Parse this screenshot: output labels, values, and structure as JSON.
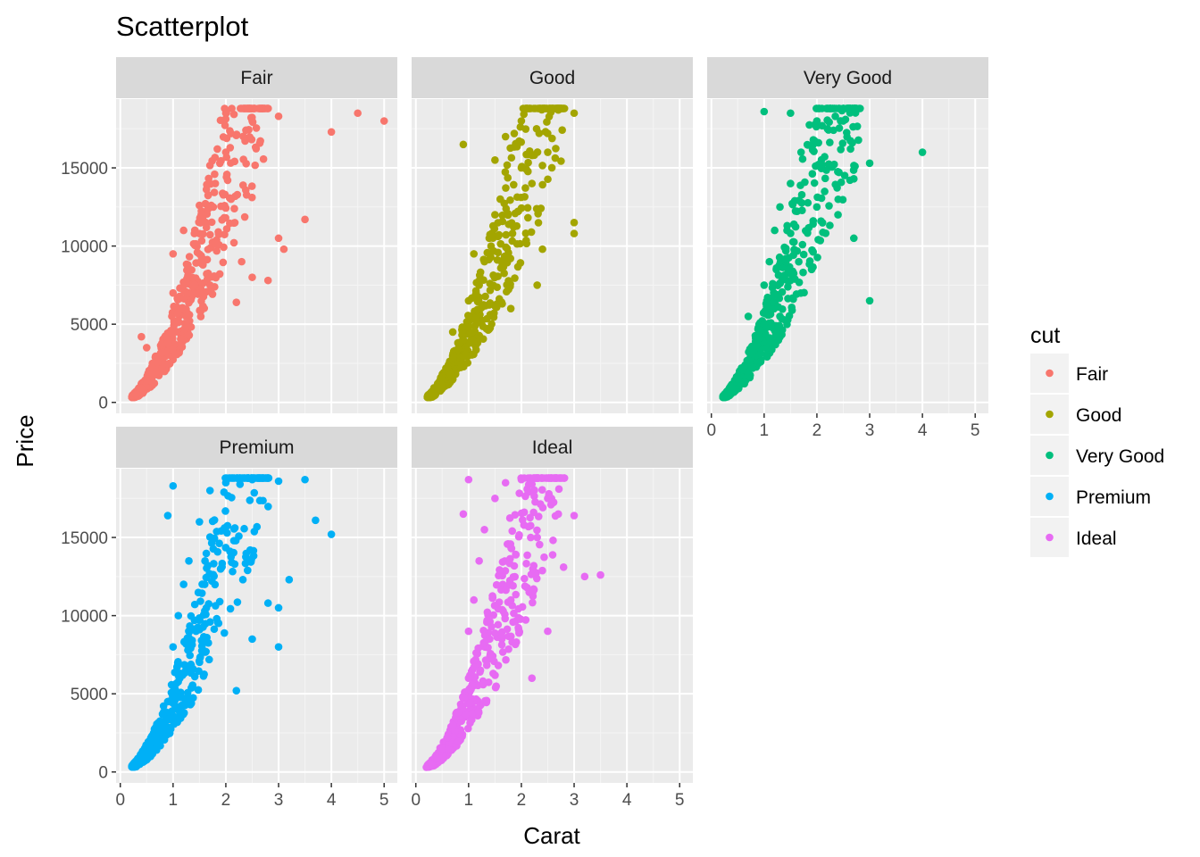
{
  "chart_data": {
    "type": "scatter",
    "title": "Scatterplot",
    "xlabel": "Carat",
    "ylabel": "Price",
    "xlim": [
      0,
      5.2
    ],
    "ylim": [
      0,
      19000
    ],
    "x_ticks": [
      0,
      1,
      2,
      3,
      4,
      5
    ],
    "y_ticks": [
      0,
      5000,
      10000,
      15000
    ],
    "legend": {
      "title": "cut",
      "position": "right",
      "entries": [
        "Fair",
        "Good",
        "Very Good",
        "Premium",
        "Ideal"
      ]
    },
    "facets": [
      {
        "name": "Fair",
        "color": "#F8766D",
        "points": [
          [
            0.3,
            500
          ],
          [
            0.4,
            900
          ],
          [
            0.5,
            1400
          ],
          [
            0.7,
            2600
          ],
          [
            0.8,
            3200
          ],
          [
            0.9,
            3800
          ],
          [
            1.0,
            4400
          ],
          [
            1.0,
            7000
          ],
          [
            1.1,
            5200
          ],
          [
            1.2,
            6000
          ],
          [
            1.5,
            7000
          ],
          [
            1.5,
            12600
          ],
          [
            2.0,
            16000
          ],
          [
            2.0,
            18500
          ],
          [
            2.5,
            18000
          ],
          [
            3.0,
            18300
          ],
          [
            3.0,
            10500
          ],
          [
            3.5,
            11700
          ],
          [
            4.0,
            17300
          ],
          [
            4.5,
            18500
          ],
          [
            5.0,
            18000
          ],
          [
            1.7,
            7500
          ],
          [
            2.2,
            6400
          ],
          [
            2.5,
            8000
          ],
          [
            0.4,
            4200
          ],
          [
            0.5,
            3500
          ],
          [
            1.0,
            9500
          ],
          [
            1.2,
            11000
          ],
          [
            1.8,
            14000
          ],
          [
            2.1,
            13000
          ],
          [
            2.3,
            9000
          ],
          [
            2.8,
            7800
          ],
          [
            3.1,
            9800
          ]
        ]
      },
      {
        "name": "Good",
        "color": "#A3A500",
        "points": [
          [
            0.25,
            400
          ],
          [
            0.3,
            600
          ],
          [
            0.4,
            1000
          ],
          [
            0.5,
            1600
          ],
          [
            0.6,
            2200
          ],
          [
            0.7,
            2800
          ],
          [
            0.8,
            3400
          ],
          [
            0.9,
            4000
          ],
          [
            1.0,
            4800
          ],
          [
            1.0,
            6500
          ],
          [
            1.2,
            7500
          ],
          [
            1.3,
            9000
          ],
          [
            1.5,
            12000
          ],
          [
            1.5,
            15500
          ],
          [
            1.7,
            17000
          ],
          [
            2.0,
            18000
          ],
          [
            2.0,
            15000
          ],
          [
            2.2,
            14000
          ],
          [
            2.5,
            16000
          ],
          [
            2.7,
            18700
          ],
          [
            3.0,
            18500
          ],
          [
            3.0,
            11500
          ],
          [
            3.0,
            10800
          ],
          [
            0.7,
            4500
          ],
          [
            1.1,
            9500
          ],
          [
            1.6,
            13000
          ],
          [
            1.8,
            6000
          ],
          [
            2.3,
            7500
          ],
          [
            2.4,
            9800
          ],
          [
            0.9,
            16500
          ]
        ]
      },
      {
        "name": "Very Good",
        "color": "#00BF7D",
        "points": [
          [
            0.23,
            400
          ],
          [
            0.3,
            600
          ],
          [
            0.4,
            900
          ],
          [
            0.5,
            1500
          ],
          [
            0.6,
            2100
          ],
          [
            0.7,
            2700
          ],
          [
            0.8,
            3300
          ],
          [
            0.9,
            4100
          ],
          [
            1.0,
            5000
          ],
          [
            1.0,
            7500
          ],
          [
            1.1,
            9000
          ],
          [
            1.2,
            11000
          ],
          [
            1.3,
            12500
          ],
          [
            1.5,
            14000
          ],
          [
            1.7,
            16000
          ],
          [
            2.0,
            18000
          ],
          [
            1.0,
            18600
          ],
          [
            1.5,
            18500
          ],
          [
            2.2,
            17500
          ],
          [
            2.5,
            18000
          ],
          [
            2.7,
            14300
          ],
          [
            3.0,
            15300
          ],
          [
            4.0,
            16000
          ],
          [
            3.0,
            6500
          ],
          [
            2.7,
            10500
          ],
          [
            1.9,
            8500
          ],
          [
            2.4,
            12000
          ],
          [
            0.7,
            5500
          ],
          [
            1.3,
            5500
          ],
          [
            2.1,
            15200
          ]
        ]
      },
      {
        "name": "Premium",
        "color": "#00B0F6",
        "points": [
          [
            0.23,
            400
          ],
          [
            0.3,
            600
          ],
          [
            0.4,
            1000
          ],
          [
            0.5,
            1700
          ],
          [
            0.6,
            2300
          ],
          [
            0.7,
            3000
          ],
          [
            0.8,
            3700
          ],
          [
            0.9,
            4500
          ],
          [
            1.0,
            5500
          ],
          [
            1.0,
            8000
          ],
          [
            1.1,
            10000
          ],
          [
            1.2,
            12000
          ],
          [
            1.3,
            13500
          ],
          [
            1.5,
            16000
          ],
          [
            1.7,
            18000
          ],
          [
            2.0,
            18500
          ],
          [
            2.5,
            18700
          ],
          [
            3.0,
            18600
          ],
          [
            3.5,
            18700
          ],
          [
            3.7,
            16100
          ],
          [
            4.0,
            15200
          ],
          [
            3.2,
            12300
          ],
          [
            3.0,
            10500
          ],
          [
            3.0,
            8000
          ],
          [
            2.5,
            8500
          ],
          [
            2.2,
            5200
          ],
          [
            1.0,
            18300
          ],
          [
            0.9,
            16400
          ],
          [
            1.6,
            12000
          ],
          [
            2.8,
            10800
          ]
        ]
      },
      {
        "name": "Ideal",
        "color": "#E76BF3",
        "points": [
          [
            0.2,
            300
          ],
          [
            0.3,
            500
          ],
          [
            0.4,
            900
          ],
          [
            0.5,
            1500
          ],
          [
            0.6,
            2200
          ],
          [
            0.7,
            3000
          ],
          [
            0.8,
            3800
          ],
          [
            0.9,
            4800
          ],
          [
            1.0,
            6000
          ],
          [
            1.0,
            9000
          ],
          [
            1.1,
            11000
          ],
          [
            1.2,
            13500
          ],
          [
            1.3,
            15500
          ],
          [
            1.5,
            17500
          ],
          [
            1.7,
            18500
          ],
          [
            2.0,
            18700
          ],
          [
            2.2,
            18400
          ],
          [
            2.5,
            17500
          ],
          [
            2.7,
            16500
          ],
          [
            3.0,
            16400
          ],
          [
            3.2,
            12500
          ],
          [
            3.5,
            12600
          ],
          [
            2.8,
            13100
          ],
          [
            2.5,
            9000
          ],
          [
            2.2,
            6000
          ],
          [
            1.0,
            18700
          ],
          [
            0.9,
            16500
          ],
          [
            1.8,
            11000
          ],
          [
            2.3,
            15000
          ],
          [
            1.4,
            8500
          ]
        ]
      }
    ]
  }
}
